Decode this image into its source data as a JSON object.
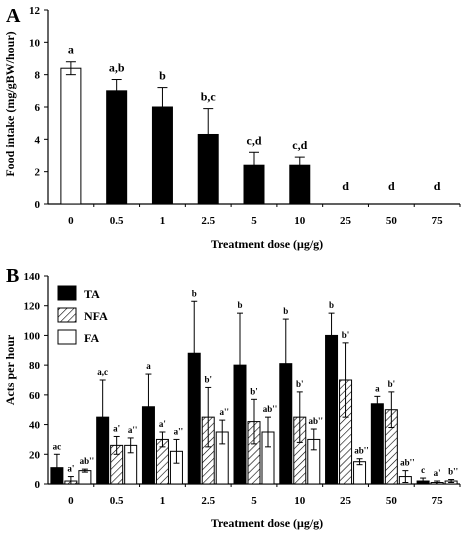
{
  "chart_data": [
    {
      "type": "bar",
      "panel_label": "A",
      "xlabel": "Treatment dose (μg/g)",
      "ylabel": "Food intake (mg/gBW/hour)",
      "ylim": [
        0,
        12
      ],
      "yticks": [
        "0",
        "2",
        "4",
        "6",
        "8",
        "10",
        "12"
      ],
      "categories": [
        "0",
        "0.5",
        "1",
        "2.5",
        "5",
        "10",
        "25",
        "50",
        "75"
      ],
      "grid": false,
      "series": [
        {
          "values": [
            8.4,
            7.0,
            6.0,
            4.3,
            2.4,
            2.4,
            0,
            0,
            0
          ],
          "errors": [
            0.4,
            0.7,
            1.2,
            1.6,
            0.8,
            0.5,
            0,
            0,
            0
          ],
          "fills": [
            "white",
            "black",
            "black",
            "black",
            "black",
            "black",
            "black",
            "black",
            "black"
          ],
          "labels": [
            "a",
            "a,b",
            "b",
            "b,c",
            "c,d",
            "c,d",
            "d",
            "d",
            "d"
          ]
        }
      ]
    },
    {
      "type": "bar",
      "panel_label": "B",
      "xlabel": "Treatment dose (μg/g)",
      "ylabel": "Acts per hour",
      "ylim": [
        0,
        140
      ],
      "yticks": [
        "0",
        "20",
        "40",
        "60",
        "80",
        "100",
        "120",
        "140"
      ],
      "categories": [
        "0",
        "0.5",
        "1",
        "2.5",
        "5",
        "10",
        "25",
        "50",
        "75"
      ],
      "legend_position": "top-left",
      "grid": false,
      "series": [
        {
          "name": "TA",
          "fill": "black",
          "values": [
            11,
            45,
            52,
            88,
            80,
            81,
            100,
            54,
            2
          ],
          "errors": [
            9,
            25,
            22,
            35,
            35,
            30,
            15,
            5,
            2
          ],
          "labels": [
            "ac",
            "a,c",
            "a",
            "b",
            "b",
            "b",
            "b",
            "a",
            "c"
          ]
        },
        {
          "name": "NFA",
          "fill": "hatch",
          "values": [
            2,
            26,
            30,
            45,
            42,
            45,
            70,
            50,
            1
          ],
          "errors": [
            3,
            6,
            5,
            20,
            15,
            17,
            25,
            12,
            1
          ],
          "labels": [
            "a'",
            "a'",
            "a'",
            "b'",
            "b'",
            "b'",
            "b'",
            "b'",
            "a'"
          ]
        },
        {
          "name": "FA",
          "fill": "white",
          "values": [
            9,
            26,
            22,
            35,
            35,
            30,
            15,
            5,
            2
          ],
          "errors": [
            1,
            5,
            8,
            8,
            10,
            7,
            2,
            4,
            1
          ],
          "labels": [
            "ab''",
            "a''",
            "a''",
            "a''",
            "ab''",
            "ab''",
            "ab''",
            "ab''",
            "b''"
          ]
        }
      ]
    }
  ]
}
